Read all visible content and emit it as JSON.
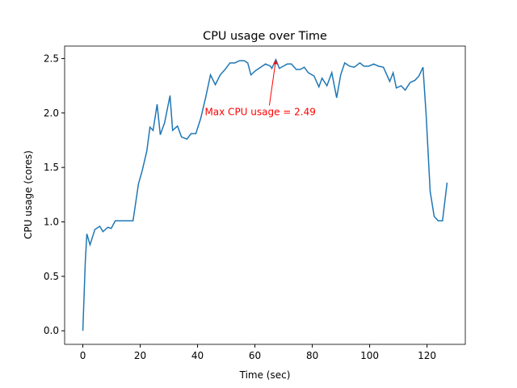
{
  "chart_data": {
    "type": "line",
    "title": "CPU usage over Time",
    "xlabel": "Time (sec)",
    "ylabel": "CPU usage (cores)",
    "x": [
      0,
      0.85,
      1.4,
      2.5,
      4.2,
      5.9,
      7,
      8.7,
      9.9,
      11.3,
      13.5,
      17.5,
      19.4,
      20.6,
      22.3,
      23.4,
      24.5,
      25.9,
      27,
      28.5,
      30.4,
      31.3,
      33,
      34.4,
      36.3,
      37.7,
      39.4,
      41.1,
      42.8,
      44.5,
      46.2,
      47.9,
      49.6,
      51.3,
      53,
      54.6,
      56.3,
      57.5,
      58.6,
      60.3,
      62,
      63.7,
      65.4,
      65.9,
      67.3,
      68.5,
      69.9,
      71.3,
      72.7,
      74.4,
      75.8,
      77.2,
      78.6,
      80.6,
      82.3,
      83.4,
      85.1,
      86.8,
      88.5,
      89.9,
      91.3,
      93,
      94.6,
      96.6,
      98,
      99.7,
      101.4,
      103.1,
      104.8,
      107,
      108.2,
      109.3,
      111,
      112.4,
      114.1,
      115.8,
      117.2,
      118.6,
      119.7,
      121.1,
      122.5,
      123.9,
      125.4,
      127
    ],
    "series": [
      {
        "name": "CPU usage",
        "color": "#1f77b4",
        "values": [
          0,
          0.63,
          0.89,
          0.79,
          0.93,
          0.96,
          0.91,
          0.95,
          0.94,
          1.01,
          1.01,
          1.01,
          1.35,
          1.46,
          1.65,
          1.87,
          1.84,
          2.08,
          1.8,
          1.91,
          2.16,
          1.84,
          1.88,
          1.78,
          1.76,
          1.81,
          1.81,
          1.95,
          2.14,
          2.35,
          2.26,
          2.35,
          2.4,
          2.46,
          2.46,
          2.48,
          2.48,
          2.46,
          2.35,
          2.39,
          2.42,
          2.45,
          2.43,
          2.41,
          2.49,
          2.41,
          2.43,
          2.45,
          2.45,
          2.4,
          2.4,
          2.42,
          2.37,
          2.34,
          2.24,
          2.32,
          2.25,
          2.37,
          2.14,
          2.35,
          2.46,
          2.43,
          2.42,
          2.46,
          2.43,
          2.43,
          2.45,
          2.43,
          2.42,
          2.29,
          2.37,
          2.23,
          2.25,
          2.21,
          2.28,
          2.3,
          2.34,
          2.42,
          1.98,
          1.28,
          1.05,
          1.01,
          1.01,
          1.36
        ]
      }
    ],
    "xlim": [
      -6.35,
      133.35
    ],
    "xticks": [
      0,
      20,
      40,
      60,
      80,
      100,
      120
    ],
    "ylim": [
      -0.1245,
      2.6145
    ],
    "yticks": [
      {
        "value": 0,
        "label": "0.0"
      },
      0.5,
      {
        "value": 1,
        "label": "1.0"
      },
      1.5,
      {
        "value": 2,
        "label": "2.0"
      },
      2.5
    ],
    "annotation": {
      "text": "Max CPU usage = 2.49",
      "xy": [
        67.3,
        2.49
      ],
      "xytext": [
        42.5,
        1.98
      ],
      "color": "red"
    }
  }
}
